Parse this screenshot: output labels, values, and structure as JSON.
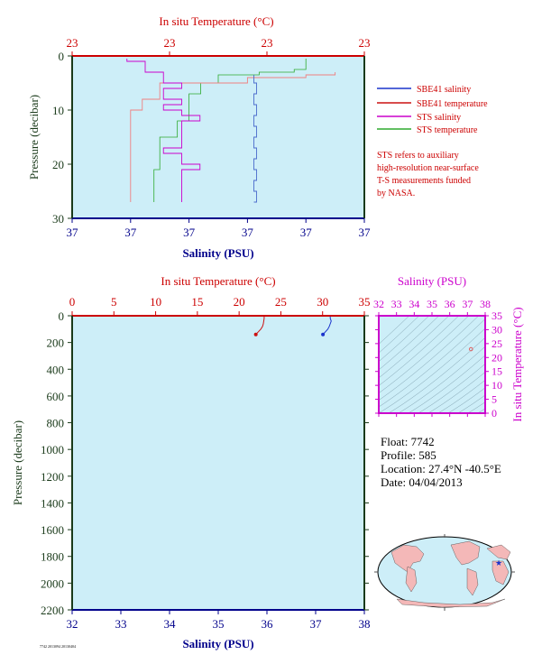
{
  "colors": {
    "plot_bg": "#cdeef8",
    "salinity": "#1a33cc",
    "temperature": "#cc1111",
    "sts_salinity": "#cc00cc",
    "sts_temperature": "#2eaa2e",
    "temp_axis": "#cc0000",
    "sal_axis": "#00008b",
    "ts_axis": "#cc00cc",
    "land": "#f4b8b8",
    "ocean": "#cdeef8"
  },
  "legend": {
    "sbe_salinity": "SBE41 salinity",
    "sbe_temperature": "SBE41 temperature",
    "sts_salinity": "STS salinity",
    "sts_temperature": "STS temperature",
    "note_lines": [
      "STS refers to auxiliary",
      "high-resolution near-surface",
      "T-S measurements funded",
      "by NASA."
    ]
  },
  "info": {
    "float": "Float:  7742",
    "profile": "Profile:  585",
    "location": "Location:  27.4°N  -40.5°E",
    "date": "Date:  04/04/2013"
  },
  "footer": "7742 2013094 20130404",
  "chart_data": [
    {
      "id": "upper",
      "type": "line",
      "xlabel": "Salinity (PSU)",
      "x2label": "In situ Temperature (°C)",
      "ylabel": "Pressure (decibar)",
      "x_ticks": [
        "37",
        "37",
        "37",
        "37",
        "37",
        "37"
      ],
      "x2_ticks": [
        "23",
        "23",
        "23",
        "23"
      ],
      "y_ticks": [
        "0",
        "10",
        "20",
        "30"
      ],
      "ylim": [
        30,
        0
      ],
      "sbe41_salinity": {
        "pressure": [
          3.5,
          5,
          7,
          9,
          11,
          13,
          15,
          17,
          19,
          21,
          23,
          25,
          27
        ],
        "value": [
          37.08,
          37.08,
          37.08,
          37.08,
          37.08,
          37.08,
          37.08,
          37.08,
          37.08,
          37.08,
          37.08,
          37.08,
          37.08
        ]
      },
      "sbe41_temperature": {
        "pressure": [
          3.0,
          3.5,
          4.0,
          5.0,
          8.0,
          10.0,
          14.0,
          18.0,
          22.0,
          27.0
        ],
        "value": [
          23.35,
          23.3,
          23.2,
          23.05,
          23.02,
          23.0,
          23.0,
          23.0,
          23.0,
          23.0
        ]
      },
      "sts_salinity": {
        "pressure": [
          0.5,
          1,
          2,
          3,
          4,
          5,
          6,
          7,
          8,
          9,
          10,
          11,
          12,
          13,
          14,
          15,
          16,
          17,
          18,
          19,
          20,
          21,
          22,
          23,
          24,
          25,
          26,
          27
        ],
        "value": [
          37.01,
          37.02,
          37.02,
          37.03,
          37.03,
          37.04,
          37.03,
          37.03,
          37.04,
          37.03,
          37.04,
          37.05,
          37.04,
          37.04,
          37.04,
          37.04,
          37.04,
          37.03,
          37.04,
          37.04,
          37.05,
          37.04,
          37.04,
          37.04,
          37.04,
          37.04,
          37.04,
          37.04
        ]
      },
      "sts_temperature": {
        "pressure": [
          0.5,
          2.5,
          3.0,
          3.5,
          5.0,
          7.0,
          9.0,
          12.0,
          15.0,
          18.0,
          21.0,
          24.0,
          27.0
        ],
        "value": [
          23.3,
          23.28,
          23.22,
          23.15,
          23.12,
          23.1,
          23.1,
          23.08,
          23.05,
          23.05,
          23.04,
          23.04,
          23.04
        ]
      }
    },
    {
      "id": "lower",
      "type": "line",
      "xlabel": "Salinity (PSU)",
      "x2label": "In situ Temperature (°C)",
      "ylabel": "Pressure (decibar)",
      "x_ticks": [
        "32",
        "33",
        "34",
        "35",
        "36",
        "37",
        "38"
      ],
      "x2_ticks": [
        "0",
        "5",
        "10",
        "15",
        "20",
        "25",
        "30",
        "35"
      ],
      "y_ticks": [
        "0",
        "200",
        "400",
        "600",
        "800",
        "1000",
        "1200",
        "1400",
        "1600",
        "1800",
        "2000",
        "2200"
      ],
      "xlim": [
        32,
        38
      ],
      "x2lim": [
        0,
        35
      ],
      "ylim": [
        2200,
        0
      ],
      "salinity": {
        "pressure": [
          0,
          20,
          40,
          60,
          80,
          100,
          120,
          140
        ],
        "value": [
          37.3,
          37.3,
          37.32,
          37.3,
          37.28,
          37.25,
          37.2,
          37.15
        ]
      },
      "temperature": {
        "pressure": [
          0,
          20,
          40,
          60,
          80,
          100,
          120,
          140
        ],
        "value": [
          23.0,
          23.0,
          22.95,
          22.9,
          22.8,
          22.6,
          22.3,
          22.0
        ]
      }
    },
    {
      "id": "ts",
      "type": "scatter",
      "xlabel": "Salinity (PSU)",
      "ylabel": "In situ Temperature (°C)",
      "x_ticks": [
        "32",
        "33",
        "34",
        "35",
        "36",
        "37",
        "38"
      ],
      "y_ticks": [
        "0",
        "5",
        "10",
        "15",
        "20",
        "25",
        "30",
        "35"
      ],
      "xlim": [
        32,
        38
      ],
      "ylim": [
        0,
        35
      ],
      "points": [
        {
          "x": 37.2,
          "y": 23.0
        }
      ]
    }
  ]
}
